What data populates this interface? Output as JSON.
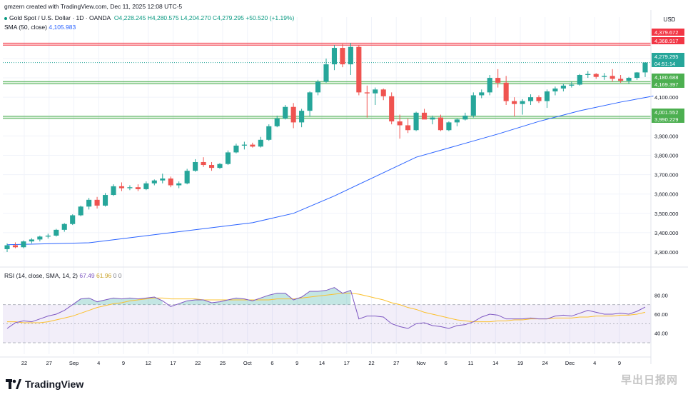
{
  "header": {
    "credit": "gmzern created with TradingView.com, Dec 11, 2025 12:08 UTC-5",
    "symbol": "Gold Spot / U.S. Dollar · 1D · OANDA",
    "ohlc": {
      "o": "O4,228.245",
      "h": "H4,280.575",
      "l": "L4,204.270",
      "c": "C4,279.295",
      "chg": "+50.520 (+1.19%)"
    },
    "sma_label": "SMA (50, close)",
    "sma_value": "4,105.983",
    "rsi_label": "RSI (14, close, SMA, 14, 2)",
    "rsi_value": "67.49",
    "rsi_sma_value": "61.96",
    "rsi_extra": "0  0"
  },
  "branding": {
    "logo_text": "TradingView",
    "watermark": "早出日报网"
  },
  "colors": {
    "up": "#26a69a",
    "down": "#ef5350",
    "sma": "#2962ff",
    "rsi": "#7e57c2",
    "rsi_sma": "#fbc02d",
    "zone_red": "#f23645",
    "zone_green": "#4caf50"
  },
  "chart_data": [
    {
      "type": "candlestick",
      "title": "Gold Spot / U.S. Dollar · 1D · OANDA",
      "currency": "USD",
      "ylim": [
        3230,
        4440
      ],
      "y_ticks": [
        3300,
        3400,
        3500,
        3600,
        3700,
        3800,
        3900,
        4000,
        4100,
        4200,
        4300
      ],
      "y_tick_labels": [
        "3,300.000",
        "3,400.000",
        "3,500.000",
        "3,600.000",
        "3,700.000",
        "3,800.000",
        "3,900.000",
        "4,000.000",
        "4,100.000",
        "4,200.000",
        "4,300.000"
      ],
      "x_ticks": [
        "22",
        "27",
        "Sep",
        "4",
        "9",
        "12",
        "17",
        "22",
        "25",
        "Oct",
        "6",
        "9",
        "14",
        "17",
        "22",
        "27",
        "Nov",
        "6",
        "11",
        "14",
        "19",
        "24",
        "Dec",
        "4",
        "9"
      ],
      "candles": [
        {
          "o": 3315,
          "h": 3345,
          "l": 3300,
          "c": 3335
        },
        {
          "o": 3335,
          "h": 3350,
          "l": 3320,
          "c": 3325
        },
        {
          "o": 3325,
          "h": 3360,
          "l": 3320,
          "c": 3355
        },
        {
          "o": 3355,
          "h": 3372,
          "l": 3345,
          "c": 3365
        },
        {
          "o": 3365,
          "h": 3385,
          "l": 3355,
          "c": 3380
        },
        {
          "o": 3380,
          "h": 3395,
          "l": 3370,
          "c": 3385
        },
        {
          "o": 3385,
          "h": 3420,
          "l": 3380,
          "c": 3415
        },
        {
          "o": 3415,
          "h": 3450,
          "l": 3405,
          "c": 3445
        },
        {
          "o": 3445,
          "h": 3495,
          "l": 3440,
          "c": 3490
        },
        {
          "o": 3490,
          "h": 3540,
          "l": 3485,
          "c": 3535
        },
        {
          "o": 3535,
          "h": 3580,
          "l": 3520,
          "c": 3570
        },
        {
          "o": 3570,
          "h": 3585,
          "l": 3525,
          "c": 3540
        },
        {
          "o": 3540,
          "h": 3605,
          "l": 3535,
          "c": 3595
        },
        {
          "o": 3595,
          "h": 3650,
          "l": 3590,
          "c": 3640
        },
        {
          "o": 3640,
          "h": 3660,
          "l": 3615,
          "c": 3630
        },
        {
          "o": 3630,
          "h": 3645,
          "l": 3620,
          "c": 3635
        },
        {
          "o": 3635,
          "h": 3650,
          "l": 3615,
          "c": 3625
        },
        {
          "o": 3625,
          "h": 3665,
          "l": 3620,
          "c": 3655
        },
        {
          "o": 3655,
          "h": 3675,
          "l": 3645,
          "c": 3670
        },
        {
          "o": 3670,
          "h": 3705,
          "l": 3655,
          "c": 3680
        },
        {
          "o": 3680,
          "h": 3690,
          "l": 3635,
          "c": 3645
        },
        {
          "o": 3645,
          "h": 3665,
          "l": 3630,
          "c": 3655
        },
        {
          "o": 3655,
          "h": 3730,
          "l": 3650,
          "c": 3720
        },
        {
          "o": 3720,
          "h": 3780,
          "l": 3715,
          "c": 3765
        },
        {
          "o": 3765,
          "h": 3790,
          "l": 3740,
          "c": 3750
        },
        {
          "o": 3750,
          "h": 3765,
          "l": 3720,
          "c": 3735
        },
        {
          "o": 3735,
          "h": 3760,
          "l": 3730,
          "c": 3755
        },
        {
          "o": 3755,
          "h": 3825,
          "l": 3750,
          "c": 3815
        },
        {
          "o": 3815,
          "h": 3860,
          "l": 3810,
          "c": 3850
        },
        {
          "o": 3850,
          "h": 3870,
          "l": 3830,
          "c": 3855
        },
        {
          "o": 3855,
          "h": 3865,
          "l": 3840,
          "c": 3845
        },
        {
          "o": 3845,
          "h": 3895,
          "l": 3840,
          "c": 3880
        },
        {
          "o": 3880,
          "h": 3960,
          "l": 3875,
          "c": 3950
        },
        {
          "o": 3950,
          "h": 4005,
          "l": 3945,
          "c": 3990
        },
        {
          "o": 3990,
          "h": 4060,
          "l": 3985,
          "c": 4050
        },
        {
          "o": 4050,
          "h": 4070,
          "l": 3940,
          "c": 3970
        },
        {
          "o": 3970,
          "h": 4040,
          "l": 3945,
          "c": 4030
        },
        {
          "o": 4030,
          "h": 4130,
          "l": 4000,
          "c": 4125
        },
        {
          "o": 4125,
          "h": 4190,
          "l": 4110,
          "c": 4180
        },
        {
          "o": 4180,
          "h": 4300,
          "l": 4175,
          "c": 4270
        },
        {
          "o": 4270,
          "h": 4370,
          "l": 4240,
          "c": 4355
        },
        {
          "o": 4355,
          "h": 4375,
          "l": 4255,
          "c": 4270
        },
        {
          "o": 4270,
          "h": 4381,
          "l": 4215,
          "c": 4360
        },
        {
          "o": 4360,
          "h": 4370,
          "l": 4110,
          "c": 4125
        },
        {
          "o": 4125,
          "h": 4160,
          "l": 3995,
          "c": 4120
        },
        {
          "o": 4120,
          "h": 4150,
          "l": 4060,
          "c": 4140
        },
        {
          "o": 4140,
          "h": 4145,
          "l": 4085,
          "c": 4105
        },
        {
          "o": 4105,
          "h": 4125,
          "l": 3960,
          "c": 3975
        },
        {
          "o": 3975,
          "h": 4010,
          "l": 3886,
          "c": 3955
        },
        {
          "o": 3955,
          "h": 3990,
          "l": 3915,
          "c": 3930
        },
        {
          "o": 3930,
          "h": 4025,
          "l": 3925,
          "c": 4020
        },
        {
          "o": 4020,
          "h": 4040,
          "l": 3990,
          "c": 3985
        },
        {
          "o": 3985,
          "h": 4005,
          "l": 3960,
          "c": 3995
        },
        {
          "o": 3995,
          "h": 4010,
          "l": 3925,
          "c": 3930
        },
        {
          "o": 3930,
          "h": 3975,
          "l": 3925,
          "c": 3970
        },
        {
          "o": 3970,
          "h": 3990,
          "l": 3950,
          "c": 3985
        },
        {
          "o": 3985,
          "h": 4020,
          "l": 3980,
          "c": 4005
        },
        {
          "o": 4005,
          "h": 4125,
          "l": 3995,
          "c": 4110
        },
        {
          "o": 4110,
          "h": 4140,
          "l": 4095,
          "c": 4125
        },
        {
          "o": 4125,
          "h": 4215,
          "l": 4110,
          "c": 4200
        },
        {
          "o": 4200,
          "h": 4245,
          "l": 4150,
          "c": 4175
        },
        {
          "o": 4175,
          "h": 4210,
          "l": 4060,
          "c": 4080
        },
        {
          "o": 4080,
          "h": 4100,
          "l": 4000,
          "c": 4065
        },
        {
          "o": 4065,
          "h": 4090,
          "l": 4010,
          "c": 4080
        },
        {
          "o": 4080,
          "h": 4115,
          "l": 4060,
          "c": 4100
        },
        {
          "o": 4100,
          "h": 4110,
          "l": 4070,
          "c": 4080
        },
        {
          "o": 4080,
          "h": 4140,
          "l": 4045,
          "c": 4130
        },
        {
          "o": 4130,
          "h": 4155,
          "l": 4110,
          "c": 4145
        },
        {
          "o": 4145,
          "h": 4170,
          "l": 4130,
          "c": 4160
        },
        {
          "o": 4160,
          "h": 4180,
          "l": 4150,
          "c": 4165
        },
        {
          "o": 4165,
          "h": 4220,
          "l": 4160,
          "c": 4215
        },
        {
          "o": 4215,
          "h": 4235,
          "l": 4200,
          "c": 4220
        },
        {
          "o": 4220,
          "h": 4225,
          "l": 4195,
          "c": 4205
        },
        {
          "o": 4205,
          "h": 4225,
          "l": 4190,
          "c": 4210
        },
        {
          "o": 4210,
          "h": 4245,
          "l": 4180,
          "c": 4195
        },
        {
          "o": 4195,
          "h": 4215,
          "l": 4175,
          "c": 4185
        },
        {
          "o": 4185,
          "h": 4205,
          "l": 4170,
          "c": 4200
        },
        {
          "o": 4200,
          "h": 4230,
          "l": 4190,
          "c": 4228
        },
        {
          "o": 4228.245,
          "h": 4280.575,
          "l": 4204.27,
          "c": 4279.295
        }
      ],
      "sma": {
        "name": "SMA (50, close)",
        "first": 3338,
        "last": 4105.983,
        "points": [
          [
            0,
            3338
          ],
          [
            10,
            3348
          ],
          [
            20,
            3400
          ],
          [
            30,
            3452
          ],
          [
            35,
            3500
          ],
          [
            40,
            3590
          ],
          [
            45,
            3690
          ],
          [
            50,
            3790
          ],
          [
            55,
            3850
          ],
          [
            60,
            3910
          ],
          [
            65,
            3975
          ],
          [
            70,
            4030
          ],
          [
            75,
            4075
          ],
          [
            79,
            4106
          ]
        ]
      },
      "zones": [
        {
          "color": "red",
          "from": 4368.917,
          "to": 4379.672
        },
        {
          "color": "green",
          "from": 4169.397,
          "to": 4180.688
        },
        {
          "color": "green",
          "from": 3990.229,
          "to": 4001.552
        }
      ],
      "price_labels": [
        {
          "text": "4,379.672",
          "kind": "red"
        },
        {
          "text": "4,368.917",
          "kind": "red"
        },
        {
          "text": "4,279.295",
          "kind": "last"
        },
        {
          "text": "04:51:14",
          "kind": "timer"
        },
        {
          "text": "4,180.688",
          "kind": "green"
        },
        {
          "text": "4,169.397",
          "kind": "green"
        },
        {
          "text": "4,001.552",
          "kind": "green"
        },
        {
          "text": "3,990.229",
          "kind": "green"
        }
      ],
      "price_label_values": [
        4379.672,
        4368.917,
        4279.295,
        4279.295,
        4180.688,
        4169.397,
        4001.552,
        3990.229
      ]
    },
    {
      "type": "line",
      "title": "RSI (14, close, SMA, 14, 2)",
      "ylim": [
        24,
        96
      ],
      "y_ticks": [
        40,
        60,
        80
      ],
      "band": [
        30,
        70
      ],
      "series": [
        {
          "name": "RSI",
          "values": [
            45,
            51,
            53,
            52,
            55,
            58,
            60,
            64,
            70,
            76,
            77,
            73,
            75,
            77,
            76,
            77,
            76,
            77,
            78,
            74,
            68,
            71,
            74,
            75,
            75,
            72,
            73,
            75,
            77,
            76,
            74,
            77,
            80,
            82,
            82,
            75,
            78,
            84,
            84,
            85,
            88,
            82,
            85,
            55,
            58,
            58,
            57,
            50,
            47,
            45,
            50,
            51,
            48,
            47,
            45,
            48,
            49,
            52,
            57,
            60,
            59,
            55,
            55,
            55,
            56,
            55,
            55,
            58,
            59,
            58,
            61,
            64,
            62,
            60,
            60,
            61,
            60,
            63,
            67.49
          ]
        },
        {
          "name": "RSI SMA",
          "values": [
            52,
            52,
            51,
            51,
            51,
            52,
            54,
            56,
            58,
            61,
            64,
            67,
            69,
            71,
            72,
            74,
            75,
            76,
            77,
            77,
            76,
            76,
            76,
            76,
            75,
            75,
            75,
            75,
            75,
            75,
            75,
            75,
            75,
            76,
            76,
            76,
            77,
            78,
            79,
            80,
            81,
            82,
            82,
            81,
            79,
            77,
            75,
            72,
            70,
            67,
            65,
            62,
            60,
            58,
            56,
            54,
            53,
            52,
            52,
            52,
            53,
            53,
            54,
            54,
            55,
            55,
            55,
            56,
            56,
            56,
            57,
            57,
            58,
            58,
            58,
            59,
            59,
            60,
            61.96
          ]
        }
      ]
    }
  ]
}
